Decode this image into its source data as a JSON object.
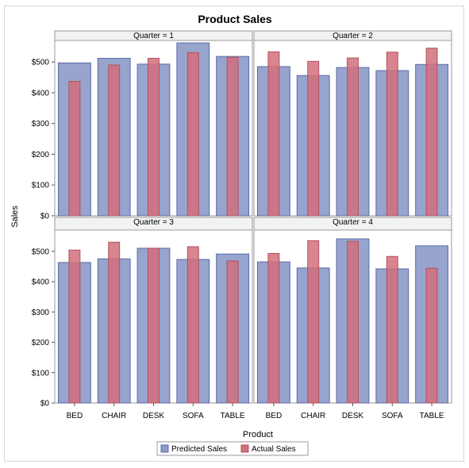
{
  "chart_data": {
    "type": "bar",
    "title": "Product Sales",
    "xlabel": "Product",
    "ylabel": "Sales",
    "categories": [
      "BED",
      "CHAIR",
      "DESK",
      "SOFA",
      "TABLE"
    ],
    "ylim": [
      0,
      570
    ],
    "yticks": [
      0,
      100,
      200,
      300,
      400,
      500
    ],
    "ytick_labels": [
      "$0",
      "$100",
      "$200",
      "$300",
      "$400",
      "$500"
    ],
    "legend_position": "bottom",
    "colors": {
      "predicted": "#8c9ac9",
      "actual": "#d1707b"
    },
    "panels": [
      {
        "label": "Quarter = 1",
        "series": [
          {
            "name": "Predicted Sales",
            "values": [
              497,
              512,
              493,
              562,
              518
            ]
          },
          {
            "name": "Actual Sales",
            "values": [
              437,
              490,
              512,
              530,
              515
            ]
          }
        ]
      },
      {
        "label": "Quarter = 2",
        "series": [
          {
            "name": "Predicted Sales",
            "values": [
              485,
              456,
              482,
              472,
              492
            ]
          },
          {
            "name": "Actual Sales",
            "values": [
              533,
              502,
              513,
              532,
              545
            ]
          }
        ]
      },
      {
        "label": "Quarter = 3",
        "series": [
          {
            "name": "Predicted Sales",
            "values": [
              463,
              475,
              510,
              473,
              491
            ]
          },
          {
            "name": "Actual Sales",
            "values": [
              504,
              530,
              510,
              515,
              468
            ]
          }
        ]
      },
      {
        "label": "Quarter = 4",
        "series": [
          {
            "name": "Predicted Sales",
            "values": [
              465,
              445,
              541,
              442,
              518
            ]
          },
          {
            "name": "Actual Sales",
            "values": [
              493,
              535,
              533,
              483,
              444
            ]
          }
        ]
      }
    ]
  }
}
